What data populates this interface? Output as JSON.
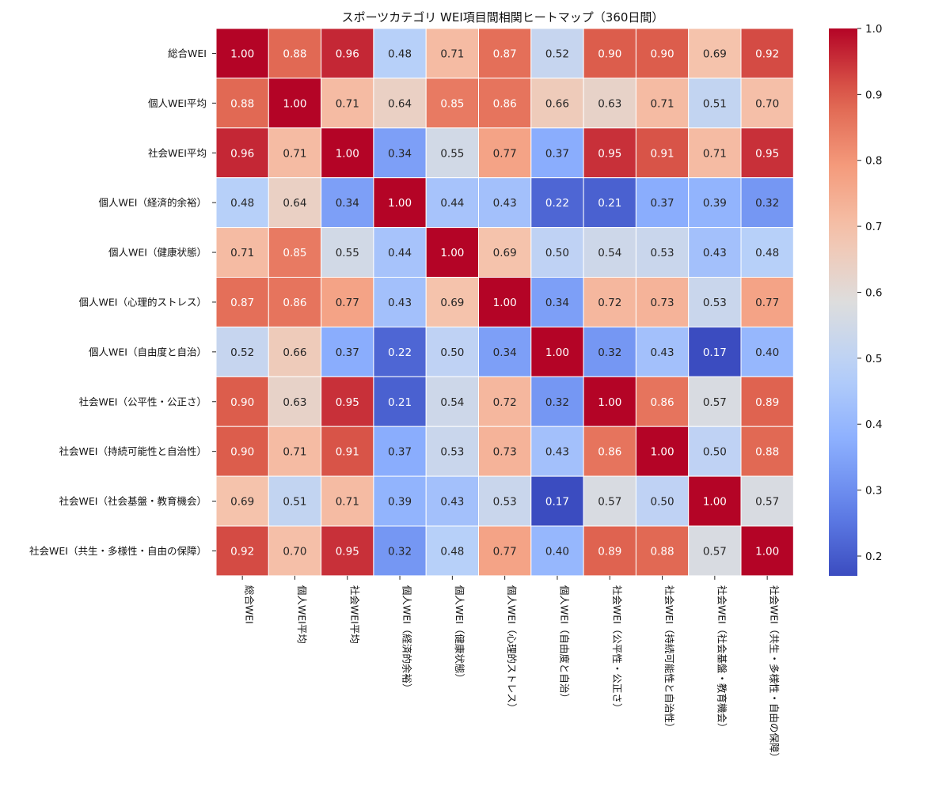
{
  "chart_data": {
    "type": "heatmap",
    "title": "スポーツカテゴリ WEI項目間相関ヒートマップ（360日間）",
    "xlabel": "",
    "ylabel": "",
    "labels": [
      "総合WEI",
      "個人WEI平均",
      "社会WEI平均",
      "個人WEI（経済的余裕）",
      "個人WEI（健康状態）",
      "個人WEI（心理的ストレス）",
      "個人WEI（自由度と自治）",
      "社会WEI（公平性・公正さ）",
      "社会WEI（持続可能性と自治性）",
      "社会WEI（社会基盤・教育機会）",
      "社会WEI（共生・多様性・自由の保障）"
    ],
    "matrix": [
      [
        1.0,
        0.88,
        0.96,
        0.48,
        0.71,
        0.87,
        0.52,
        0.9,
        0.9,
        0.69,
        0.92
      ],
      [
        0.88,
        1.0,
        0.71,
        0.64,
        0.85,
        0.86,
        0.66,
        0.63,
        0.71,
        0.51,
        0.7
      ],
      [
        0.96,
        0.71,
        1.0,
        0.34,
        0.55,
        0.77,
        0.37,
        0.95,
        0.91,
        0.71,
        0.95
      ],
      [
        0.48,
        0.64,
        0.34,
        1.0,
        0.44,
        0.43,
        0.22,
        0.21,
        0.37,
        0.39,
        0.32
      ],
      [
        0.71,
        0.85,
        0.55,
        0.44,
        1.0,
        0.69,
        0.5,
        0.54,
        0.53,
        0.43,
        0.48
      ],
      [
        0.87,
        0.86,
        0.77,
        0.43,
        0.69,
        1.0,
        0.34,
        0.72,
        0.73,
        0.53,
        0.77
      ],
      [
        0.52,
        0.66,
        0.37,
        0.22,
        0.5,
        0.34,
        1.0,
        0.32,
        0.43,
        0.17,
        0.4
      ],
      [
        0.9,
        0.63,
        0.95,
        0.21,
        0.54,
        0.72,
        0.32,
        1.0,
        0.86,
        0.57,
        0.89
      ],
      [
        0.9,
        0.71,
        0.91,
        0.37,
        0.53,
        0.73,
        0.43,
        0.86,
        1.0,
        0.5,
        0.88
      ],
      [
        0.69,
        0.51,
        0.71,
        0.39,
        0.43,
        0.53,
        0.17,
        0.57,
        0.5,
        1.0,
        0.57
      ],
      [
        0.92,
        0.7,
        0.95,
        0.32,
        0.48,
        0.77,
        0.4,
        0.89,
        0.88,
        0.57,
        1.0
      ]
    ],
    "vmin": 0.17,
    "vmax": 1.0,
    "colormap": "coolwarm",
    "colorbar_ticks": [
      0.2,
      0.3,
      0.4,
      0.5,
      0.6,
      0.7,
      0.8,
      0.9,
      1.0
    ],
    "annotation_format": "0.00"
  }
}
